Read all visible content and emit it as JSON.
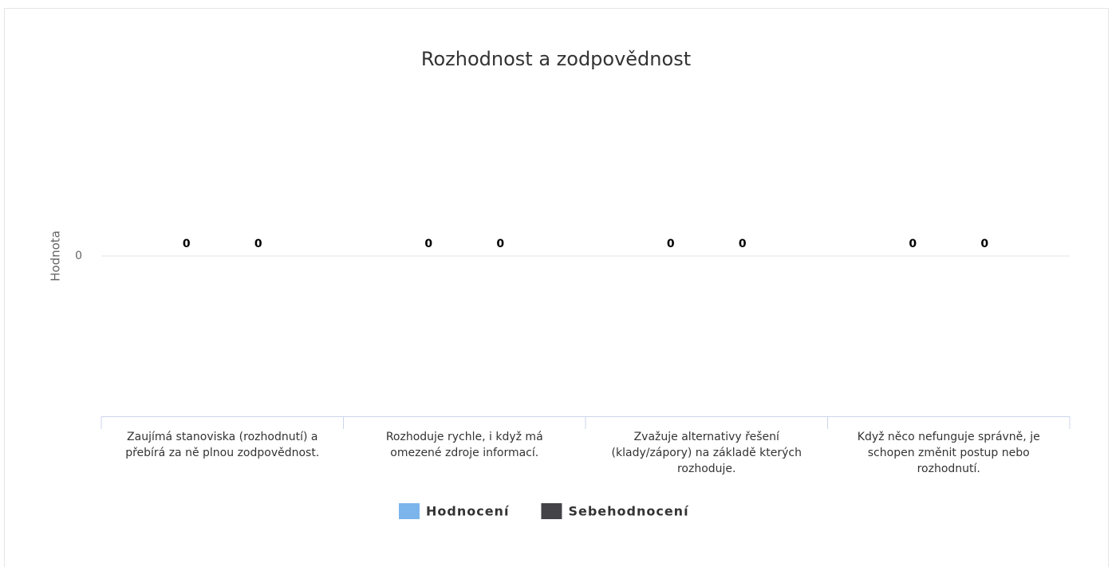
{
  "chart_data": {
    "type": "bar",
    "title": "Rozhodnost a zodpovědnost",
    "y_label": "Hodnota",
    "categories": [
      "Zaujímá stanoviska (rozhodnutí) a přebírá za ně plnou zodpovědnost.",
      "Rozhoduje rychle, i když má omezené zdroje informací.",
      "Zvažuje alternativy řešení (klady/zápory) na základě kterých rozhoduje.",
      "Když něco nefunguje správně, je schopen změnit postup nebo rozhodnutí."
    ],
    "series": [
      {
        "name": "Hodnocení",
        "color": "#7cb5ec",
        "values": [
          0,
          0,
          0,
          0
        ]
      },
      {
        "name": "Sebehodnocení",
        "color": "#434348",
        "values": [
          0,
          0,
          0,
          0
        ]
      }
    ],
    "ylim": [
      -1,
      1
    ],
    "yticks": [
      0
    ],
    "grid": true
  }
}
